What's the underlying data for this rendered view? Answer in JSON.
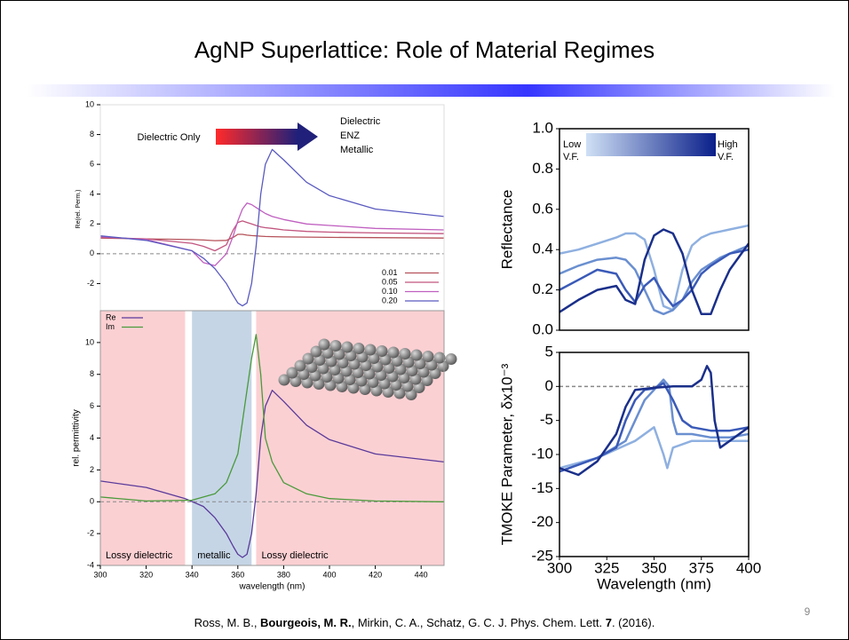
{
  "title": "AgNP Superlattice: Role of Material Regimes",
  "slide_number": 9,
  "citation": [
    {
      "text": "Ross, M. B., "
    },
    {
      "text": "Bourgeois, M. R.",
      "bold": true
    },
    {
      "text": ", Mirkin, C. A., Schatz, G. C. J. Phys. Chem. Lett. "
    },
    {
      "text": "7",
      "bold": true
    },
    {
      "text": ". (2016)."
    }
  ],
  "chart_data": [
    {
      "type": "line",
      "ylabel": "Re(rel. Perm.)",
      "xlim": [
        300,
        450
      ],
      "ylim": [
        -4,
        10
      ],
      "yticks": [
        -2,
        0,
        2,
        4,
        6,
        8,
        10
      ],
      "reference_line": 0,
      "legend": "lower right",
      "annotation": {
        "from": "Dielectric Only",
        "to": [
          "Dielectric",
          "ENZ",
          "Metallic"
        ]
      },
      "series": [
        {
          "name": "0.01",
          "color": "#b5525a",
          "x": [
            300,
            320,
            340,
            345,
            350,
            355,
            358,
            360,
            362,
            364,
            366,
            368,
            370,
            372,
            375,
            380,
            390,
            400,
            420,
            450
          ],
          "values": [
            1.05,
            1.0,
            0.95,
            0.92,
            0.88,
            0.9,
            1.1,
            1.3,
            1.3,
            1.25,
            1.22,
            1.2,
            1.18,
            1.16,
            1.15,
            1.13,
            1.12,
            1.1,
            1.08,
            1.05
          ]
        },
        {
          "name": "0.05",
          "color": "#c2557e",
          "x": [
            300,
            320,
            340,
            345,
            350,
            355,
            358,
            360,
            362,
            364,
            366,
            368,
            370,
            372,
            375,
            380,
            390,
            400,
            420,
            450
          ],
          "values": [
            1.1,
            1.0,
            0.7,
            0.5,
            0.2,
            0.6,
            1.6,
            2.1,
            2.2,
            2.1,
            2.0,
            1.9,
            1.8,
            1.75,
            1.7,
            1.6,
            1.5,
            1.45,
            1.4,
            1.35
          ]
        },
        {
          "name": "0.10",
          "color": "#c060c0",
          "x": [
            300,
            320,
            340,
            345,
            350,
            355,
            358,
            360,
            362,
            364,
            366,
            368,
            370,
            372,
            375,
            380,
            390,
            400,
            420,
            450
          ],
          "values": [
            1.15,
            0.95,
            0.2,
            -0.6,
            -0.8,
            0.0,
            1.2,
            2.2,
            3.0,
            3.4,
            3.3,
            3.1,
            2.9,
            2.7,
            2.5,
            2.3,
            2.0,
            1.9,
            1.7,
            1.6
          ]
        },
        {
          "name": "0.20",
          "color": "#5a5ac0",
          "x": [
            300,
            320,
            340,
            345,
            350,
            355,
            358,
            360,
            362,
            364,
            366,
            368,
            370,
            372,
            375,
            380,
            390,
            400,
            420,
            450
          ],
          "values": [
            1.2,
            0.9,
            0.2,
            -0.3,
            -1.0,
            -2.0,
            -2.8,
            -3.3,
            -3.5,
            -3.3,
            -2.0,
            0.5,
            4.0,
            6.0,
            7.0,
            6.3,
            4.8,
            3.9,
            3.0,
            2.5
          ]
        }
      ]
    },
    {
      "type": "line",
      "xlabel": "wavelength (nm)",
      "ylabel": "rel. permittivity",
      "xlim": [
        300,
        450
      ],
      "ylim": [
        -4,
        12
      ],
      "xticks": [
        300,
        320,
        340,
        360,
        380,
        400,
        420,
        440
      ],
      "yticks": [
        -4,
        -2,
        0,
        2,
        4,
        6,
        8,
        10
      ],
      "reference_line": 0,
      "legend": "upper left",
      "regions": [
        {
          "label": "Lossy dielectric",
          "range": [
            300,
            337
          ],
          "color": "#fbd0d3"
        },
        {
          "label": "metallic",
          "range": [
            340,
            366
          ],
          "color": "#c5d5e6"
        },
        {
          "label": "Lossy dielectric",
          "range": [
            368,
            450
          ],
          "color": "#fbd0d3"
        }
      ],
      "series": [
        {
          "name": "Re",
          "color": "#5a3a9a",
          "x": [
            300,
            320,
            337,
            345,
            350,
            355,
            358,
            360,
            362,
            364,
            366,
            368,
            370,
            372,
            375,
            380,
            390,
            400,
            420,
            450
          ],
          "values": [
            1.3,
            0.9,
            0.2,
            -0.3,
            -1.0,
            -2.0,
            -2.8,
            -3.3,
            -3.5,
            -3.3,
            -2.0,
            0.5,
            4.0,
            6.0,
            7.0,
            6.3,
            4.8,
            3.9,
            3.0,
            2.5
          ]
        },
        {
          "name": "Im",
          "color": "#4a9a3a",
          "x": [
            300,
            320,
            340,
            350,
            355,
            360,
            363,
            366,
            368,
            370,
            372,
            375,
            380,
            390,
            400,
            420,
            450
          ],
          "values": [
            0.3,
            0.05,
            0.1,
            0.5,
            1.2,
            3.0,
            6.0,
            9.0,
            10.5,
            8.0,
            4.0,
            2.5,
            1.2,
            0.5,
            0.2,
            0.05,
            0.0
          ]
        }
      ]
    },
    {
      "type": "line",
      "ylabel": "Reflectance",
      "xlim": [
        300,
        400
      ],
      "ylim": [
        0,
        1
      ],
      "yticks": [
        {
          "value": 0,
          "label": "0.0"
        },
        0.2,
        0.4,
        0.6,
        0.8,
        {
          "value": 1,
          "label": "1.0"
        }
      ],
      "colorbar": {
        "low": [
          "Low",
          "V.F."
        ],
        "high": [
          "High",
          "V.F."
        ],
        "colors": [
          "#cfe0f5",
          "#0a1f8a"
        ]
      },
      "series": [
        {
          "color": "#8fb0e0",
          "x": [
            300,
            310,
            320,
            330,
            335,
            340,
            345,
            350,
            355,
            360,
            365,
            370,
            375,
            380,
            385,
            390,
            400
          ],
          "values": [
            0.38,
            0.4,
            0.43,
            0.46,
            0.48,
            0.48,
            0.45,
            0.3,
            0.12,
            0.1,
            0.3,
            0.42,
            0.46,
            0.48,
            0.49,
            0.5,
            0.52
          ]
        },
        {
          "color": "#6a8fd0",
          "x": [
            300,
            310,
            320,
            330,
            335,
            340,
            345,
            350,
            355,
            360,
            365,
            370,
            375,
            380,
            385,
            390,
            400
          ],
          "values": [
            0.28,
            0.32,
            0.35,
            0.36,
            0.35,
            0.3,
            0.2,
            0.1,
            0.08,
            0.1,
            0.15,
            0.24,
            0.3,
            0.33,
            0.36,
            0.38,
            0.42
          ]
        },
        {
          "color": "#3a5ab8",
          "x": [
            300,
            310,
            320,
            330,
            335,
            340,
            345,
            350,
            355,
            360,
            365,
            370,
            375,
            380,
            385,
            390,
            400
          ],
          "values": [
            0.2,
            0.25,
            0.3,
            0.28,
            0.2,
            0.14,
            0.22,
            0.26,
            0.18,
            0.12,
            0.15,
            0.2,
            0.28,
            0.32,
            0.35,
            0.38,
            0.4
          ]
        },
        {
          "color": "#1a2f8a",
          "x": [
            300,
            310,
            320,
            330,
            335,
            340,
            345,
            350,
            355,
            360,
            365,
            370,
            375,
            380,
            385,
            390,
            400
          ],
          "values": [
            0.09,
            0.15,
            0.2,
            0.22,
            0.15,
            0.13,
            0.35,
            0.47,
            0.5,
            0.48,
            0.38,
            0.2,
            0.08,
            0.08,
            0.2,
            0.3,
            0.43
          ]
        }
      ]
    },
    {
      "type": "line",
      "xlabel": "Wavelength (nm)",
      "ylabel": "TMOKE Parameter, δx10⁻³",
      "xlim": [
        300,
        400
      ],
      "ylim": [
        -25,
        5
      ],
      "xticks": [
        300,
        325,
        350,
        375,
        400
      ],
      "yticks": [
        -25,
        -20,
        -15,
        -10,
        -5,
        0,
        5
      ],
      "reference_line": 0,
      "series": [
        {
          "color": "#8fb0e0",
          "x": [
            300,
            320,
            340,
            350,
            355,
            357,
            360,
            370,
            380,
            390,
            400
          ],
          "values": [
            -12,
            -10.5,
            -8,
            -6,
            -10,
            -12,
            -9,
            -8,
            -8,
            -8,
            -8
          ]
        },
        {
          "color": "#6a8fd0",
          "x": [
            300,
            320,
            335,
            340,
            345,
            350,
            355,
            358,
            360,
            362,
            370,
            380,
            390,
            400
          ],
          "values": [
            -12.5,
            -10.5,
            -8,
            -5,
            -2,
            -0.5,
            1,
            0,
            -5,
            -7,
            -7,
            -7.5,
            -7.5,
            -7
          ]
        },
        {
          "color": "#3a5ab8",
          "x": [
            300,
            320,
            330,
            335,
            340,
            345,
            350,
            355,
            360,
            365,
            370,
            380,
            390,
            400
          ],
          "values": [
            -12.5,
            -10.5,
            -9,
            -5,
            -2,
            -0.5,
            -0.3,
            0.5,
            -2,
            -5,
            -6,
            -6.5,
            -6.5,
            -6
          ]
        },
        {
          "color": "#1a2f8a",
          "x": [
            300,
            310,
            320,
            330,
            335,
            340,
            350,
            360,
            370,
            375,
            378,
            380,
            382,
            385,
            390,
            400
          ],
          "values": [
            -12,
            -13,
            -11,
            -7,
            -3,
            -0.5,
            -0.2,
            0,
            0,
            1,
            3,
            2,
            -5,
            -9,
            -8,
            -6
          ]
        }
      ]
    }
  ]
}
